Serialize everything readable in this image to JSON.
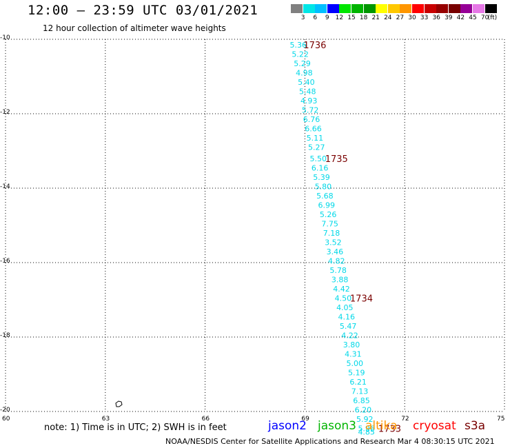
{
  "header": {
    "title": "12:00 – 23:59 UTC 03/01/2021",
    "subtitle": "12 hour collection of altimeter wave heights"
  },
  "legend": {
    "colors": [
      "#808080",
      "#00e6e6",
      "#00bfff",
      "#0000ff",
      "#00e600",
      "#00b400",
      "#009600",
      "#ffff00",
      "#ffc800",
      "#ff9600",
      "#ff0000",
      "#c80000",
      "#960000",
      "#780000",
      "#960096",
      "#e678e6",
      "#000000"
    ],
    "ticks": [
      "3",
      "6",
      "9",
      "12",
      "15",
      "18",
      "21",
      "24",
      "27",
      "30",
      "33",
      "36",
      "39",
      "42",
      "45",
      "70"
    ],
    "unit": "(ft)"
  },
  "map": {
    "lat_labels": [
      "-10",
      "-12",
      "-14",
      "-16",
      "-18",
      "-20"
    ],
    "lon_labels": [
      "60",
      "63",
      "66",
      "69",
      "72",
      "75"
    ]
  },
  "chart_data": {
    "type": "scatter",
    "xlabel": "",
    "ylabel": "",
    "xlim": [
      60,
      75
    ],
    "ylim": [
      -20,
      -10
    ],
    "swh_track": [
      {
        "lon": 68.8,
        "lat": -10.15,
        "value": "5.36"
      },
      {
        "lon": 68.86,
        "lat": -10.4,
        "value": "5.22"
      },
      {
        "lon": 68.92,
        "lat": -10.65,
        "value": "5.29"
      },
      {
        "lon": 68.98,
        "lat": -10.9,
        "value": "4.98"
      },
      {
        "lon": 69.04,
        "lat": -11.15,
        "value": "5.40"
      },
      {
        "lon": 69.08,
        "lat": -11.4,
        "value": "5.48"
      },
      {
        "lon": 69.12,
        "lat": -11.65,
        "value": "4.93"
      },
      {
        "lon": 69.16,
        "lat": -11.9,
        "value": "5.72"
      },
      {
        "lon": 69.2,
        "lat": -12.15,
        "value": "6.76"
      },
      {
        "lon": 69.25,
        "lat": -12.4,
        "value": "6.66"
      },
      {
        "lon": 69.3,
        "lat": -12.65,
        "value": "5.11"
      },
      {
        "lon": 69.35,
        "lat": -12.9,
        "value": "5.27"
      },
      {
        "lon": 69.4,
        "lat": -13.2,
        "value": "5.50"
      },
      {
        "lon": 69.45,
        "lat": -13.45,
        "value": "6.16"
      },
      {
        "lon": 69.5,
        "lat": -13.7,
        "value": "5.39"
      },
      {
        "lon": 69.55,
        "lat": -13.95,
        "value": "5.80"
      },
      {
        "lon": 69.6,
        "lat": -14.2,
        "value": "5.68"
      },
      {
        "lon": 69.65,
        "lat": -14.45,
        "value": "6.99"
      },
      {
        "lon": 69.7,
        "lat": -14.7,
        "value": "5.26"
      },
      {
        "lon": 69.75,
        "lat": -14.95,
        "value": "7.75"
      },
      {
        "lon": 69.8,
        "lat": -15.2,
        "value": "7.18"
      },
      {
        "lon": 69.85,
        "lat": -15.45,
        "value": "3.52"
      },
      {
        "lon": 69.9,
        "lat": -15.7,
        "value": "3.46"
      },
      {
        "lon": 69.95,
        "lat": -15.95,
        "value": "4.82"
      },
      {
        "lon": 70.0,
        "lat": -16.2,
        "value": "5.78"
      },
      {
        "lon": 70.05,
        "lat": -16.45,
        "value": "3.88"
      },
      {
        "lon": 70.1,
        "lat": -16.7,
        "value": "4.42"
      },
      {
        "lon": 70.15,
        "lat": -16.95,
        "value": "4.50"
      },
      {
        "lon": 70.2,
        "lat": -17.2,
        "value": "4.05"
      },
      {
        "lon": 70.25,
        "lat": -17.45,
        "value": "4.16"
      },
      {
        "lon": 70.3,
        "lat": -17.7,
        "value": "5.47"
      },
      {
        "lon": 70.35,
        "lat": -17.95,
        "value": "4.22"
      },
      {
        "lon": 70.4,
        "lat": -18.2,
        "value": "3.80"
      },
      {
        "lon": 70.45,
        "lat": -18.45,
        "value": "4.31"
      },
      {
        "lon": 70.5,
        "lat": -18.7,
        "value": "5.00"
      },
      {
        "lon": 70.55,
        "lat": -18.95,
        "value": "5.19"
      },
      {
        "lon": 70.6,
        "lat": -19.2,
        "value": "6.21"
      },
      {
        "lon": 70.65,
        "lat": -19.45,
        "value": "7.13"
      },
      {
        "lon": 70.7,
        "lat": -19.7,
        "value": "6.85"
      },
      {
        "lon": 70.75,
        "lat": -19.95,
        "value": "6.20"
      },
      {
        "lon": 70.8,
        "lat": -20.2,
        "value": "5.92"
      },
      {
        "lon": 70.85,
        "lat": -20.45,
        "value": "5.96"
      },
      {
        "lon": 70.85,
        "lat": -20.55,
        "value": "4.85"
      }
    ],
    "pass_times": [
      {
        "lon": 69.3,
        "lat": -10.15,
        "label": "1736"
      },
      {
        "lon": 69.95,
        "lat": -13.2,
        "label": "1735"
      },
      {
        "lon": 70.7,
        "lat": -16.95,
        "label": "1734"
      },
      {
        "lon": 71.55,
        "lat": -20.45,
        "label": "1733"
      }
    ]
  },
  "footer": {
    "note": "note: 1) Time is in UTC; 2) SWH is in feet",
    "credit": "NOAA/NESDIS Center for Satellite Applications and Research   Mar  4 08:30:15 UTC 2021"
  },
  "satellites": [
    {
      "name": "jason2",
      "color": "#0000ff"
    },
    {
      "name": "jason3",
      "color": "#00b400"
    },
    {
      "name": "altika",
      "color": "#ff9600"
    },
    {
      "name": "cryosat",
      "color": "#ff0000"
    },
    {
      "name": "s3a",
      "color": "#780000"
    }
  ]
}
